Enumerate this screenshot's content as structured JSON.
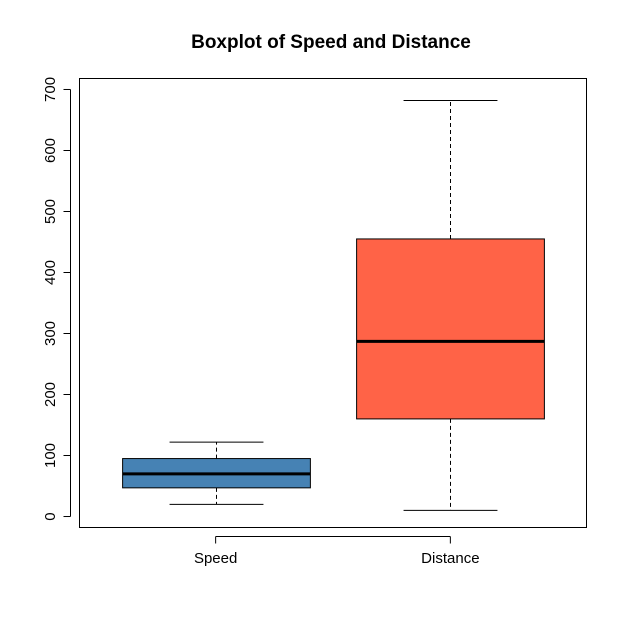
{
  "chart_data": {
    "type": "box",
    "title": "Boxplot of Speed and Distance",
    "xlabel": "",
    "ylabel": "",
    "ylim": [
      -18,
      718
    ],
    "yticks": [
      0,
      100,
      200,
      300,
      400,
      500,
      600,
      700
    ],
    "yticks_labels": [
      "0",
      "100",
      "200",
      "300",
      "400",
      "500",
      "600",
      "700"
    ],
    "grid": false,
    "categories": [
      "Speed",
      "Distance"
    ],
    "boxes": [
      {
        "category": "Speed",
        "color": "#4682B4",
        "whisker_low": 20,
        "q1": 47,
        "median": 70,
        "q3": 95,
        "whisker_high": 122
      },
      {
        "category": "Distance",
        "color": "#FF6347",
        "whisker_low": 10,
        "q1": 160,
        "median": 287,
        "q3": 455,
        "whisker_high": 682
      }
    ]
  }
}
